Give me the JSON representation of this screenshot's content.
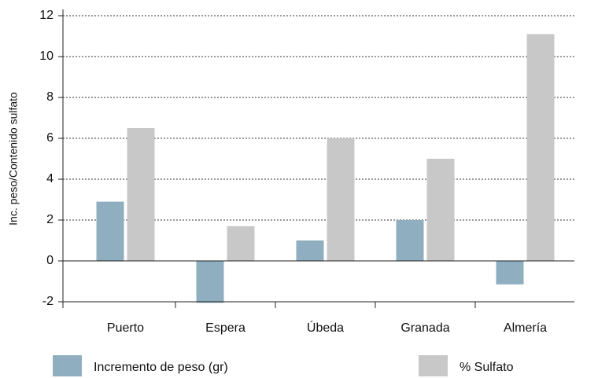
{
  "chart_data": {
    "type": "bar",
    "y_label": "Inc. peso/Contenido sulfato",
    "categories": [
      "Puerto",
      "Espera",
      "Úbeda",
      "Granada",
      "Almería"
    ],
    "series": [
      {
        "name": "Incremento de peso (gr)",
        "color": "#8fafc0",
        "values": [
          2.9,
          -2.05,
          1.0,
          2.0,
          -1.15
        ]
      },
      {
        "name": "% Sulfato",
        "color": "#c8c8c8",
        "values": [
          6.5,
          1.7,
          6.0,
          5.0,
          11.1
        ]
      }
    ],
    "ylim": [
      -2,
      12
    ],
    "yticks": [
      -2,
      0,
      2,
      4,
      6,
      8,
      10,
      12
    ],
    "grid": true
  }
}
